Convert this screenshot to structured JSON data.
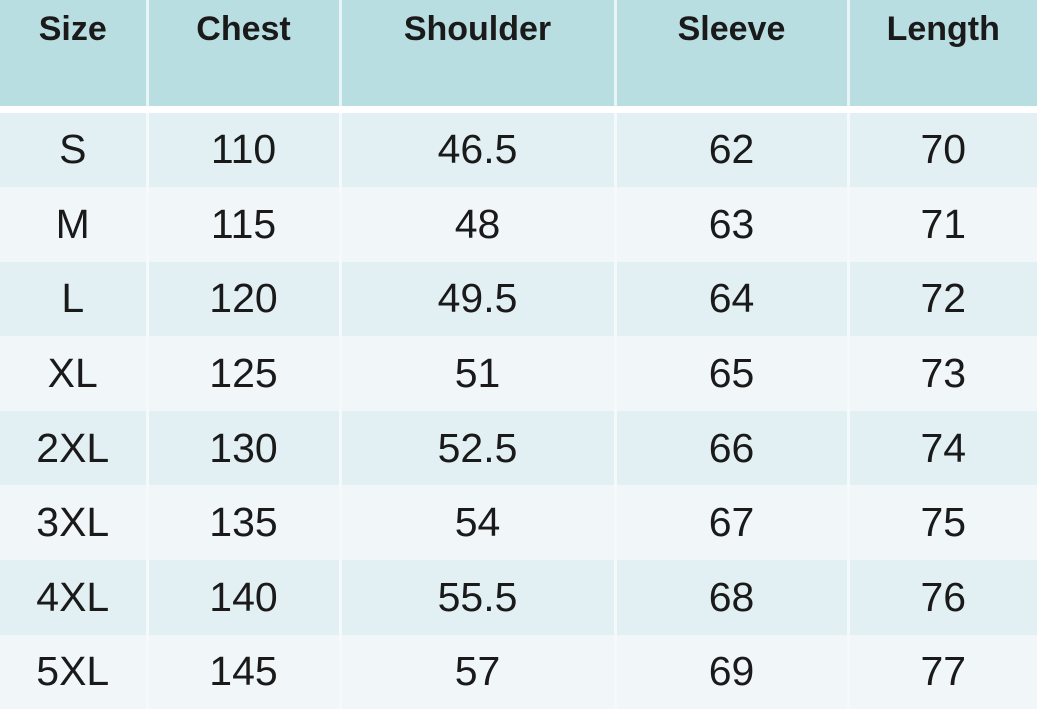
{
  "table": {
    "headers": [
      "Size",
      "Chest",
      "Shoulder",
      "Sleeve",
      "Length"
    ],
    "rows": [
      [
        "S",
        "110",
        "46.5",
        "62",
        "70"
      ],
      [
        "M",
        "115",
        "48",
        "63",
        "71"
      ],
      [
        "L",
        "120",
        "49.5",
        "64",
        "72"
      ],
      [
        "XL",
        "125",
        "51",
        "65",
        "73"
      ],
      [
        "2XL",
        "130",
        "52.5",
        "66",
        "74"
      ],
      [
        "3XL",
        "135",
        "54",
        "67",
        "75"
      ],
      [
        "4XL",
        "140",
        "55.5",
        "68",
        "76"
      ],
      [
        "5XL",
        "145",
        "57",
        "69",
        "77"
      ]
    ]
  },
  "colors": {
    "header_bg": "#b9dee2",
    "row_odd": "#e2f0f3",
    "row_even": "#f1f7f9"
  }
}
